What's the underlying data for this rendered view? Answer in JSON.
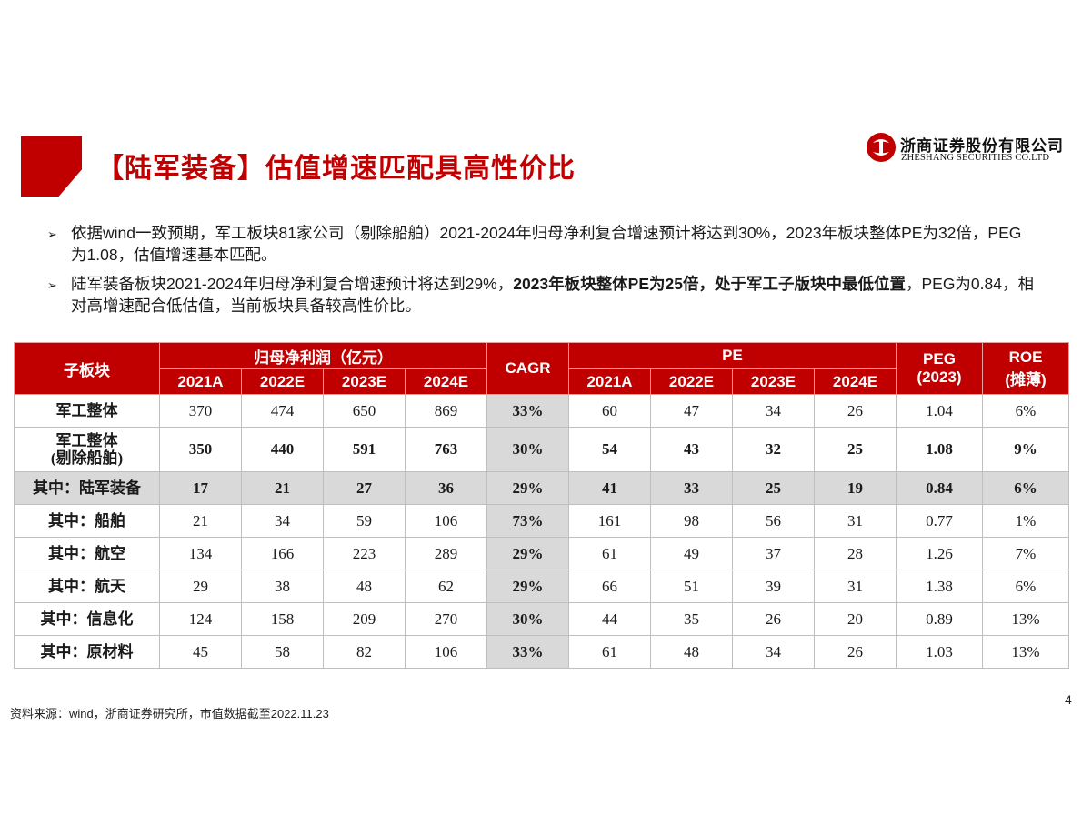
{
  "header": {
    "title": "【陆军装备】估值增速匹配具高性价比",
    "logo_cn": "浙商证券股份有限公司",
    "logo_en": "ZHESHANG SECURITIES CO.LTD",
    "accent": "#c00000"
  },
  "bullets": [
    {
      "icon": "bullet-arrow-icon",
      "segments": [
        {
          "text": "依据wind一致预期，军工板块81家公司（剔除船舶）2021-2024年归母净利复合增速预计将达到30%，2023年板块整体PE为32倍，PEG为1.08，估值增速基本匹配。",
          "bold": false
        }
      ]
    },
    {
      "icon": "bullet-arrow-icon",
      "segments": [
        {
          "text": "陆军装备板块2021-2024年归母净利复合增速预计将达到29%，",
          "bold": false
        },
        {
          "text": "2023年板块整体PE为25倍，处于军工子版块中最低位置",
          "bold": true
        },
        {
          "text": "，PEG为0.84，相对高增速配合低估值，当前板块具备较高性价比。",
          "bold": false
        }
      ]
    }
  ],
  "table": {
    "col_sub": "子板块",
    "col_profit": "归母净利润（亿元）",
    "col_cagr": "CAGR",
    "col_pe": "PE",
    "col_peg": "PEG",
    "col_peg_sub": "(2023)",
    "col_roe": "ROE",
    "col_roe_sub": "(摊薄)",
    "years": [
      "2021A",
      "2022E",
      "2023E",
      "2024E"
    ],
    "rows": [
      {
        "label": "军工整体",
        "label2": "",
        "profit": [
          "370",
          "474",
          "650",
          "869"
        ],
        "cagr": "33%",
        "pe": [
          "60",
          "47",
          "34",
          "26"
        ],
        "peg": "1.04",
        "roe": "6%",
        "bold": false,
        "shade": false
      },
      {
        "label": "军工整体",
        "label2": "(剔除船舶)",
        "profit": [
          "350",
          "440",
          "591",
          "763"
        ],
        "cagr": "30%",
        "pe": [
          "54",
          "43",
          "32",
          "25"
        ],
        "peg": "1.08",
        "roe": "9%",
        "bold": true,
        "shade": false
      },
      {
        "label": "其中：陆军装备",
        "label2": "",
        "profit": [
          "17",
          "21",
          "27",
          "36"
        ],
        "cagr": "29%",
        "pe": [
          "41",
          "33",
          "25",
          "19"
        ],
        "peg": "0.84",
        "roe": "6%",
        "bold": true,
        "shade": true
      },
      {
        "label": "其中：船舶",
        "label2": "",
        "profit": [
          "21",
          "34",
          "59",
          "106"
        ],
        "cagr": "73%",
        "pe": [
          "161",
          "98",
          "56",
          "31"
        ],
        "peg": "0.77",
        "roe": "1%",
        "bold": false,
        "shade": false
      },
      {
        "label": "其中：航空",
        "label2": "",
        "profit": [
          "134",
          "166",
          "223",
          "289"
        ],
        "cagr": "29%",
        "pe": [
          "61",
          "49",
          "37",
          "28"
        ],
        "peg": "1.26",
        "roe": "7%",
        "bold": false,
        "shade": false
      },
      {
        "label": "其中：航天",
        "label2": "",
        "profit": [
          "29",
          "38",
          "48",
          "62"
        ],
        "cagr": "29%",
        "pe": [
          "66",
          "51",
          "39",
          "31"
        ],
        "peg": "1.38",
        "roe": "6%",
        "bold": false,
        "shade": false
      },
      {
        "label": "其中：信息化",
        "label2": "",
        "profit": [
          "124",
          "158",
          "209",
          "270"
        ],
        "cagr": "30%",
        "pe": [
          "44",
          "35",
          "26",
          "20"
        ],
        "peg": "0.89",
        "roe": "13%",
        "bold": false,
        "shade": false
      },
      {
        "label": "其中：原材料",
        "label2": "",
        "profit": [
          "45",
          "58",
          "82",
          "106"
        ],
        "cagr": "33%",
        "pe": [
          "61",
          "48",
          "34",
          "26"
        ],
        "peg": "1.03",
        "roe": "13%",
        "bold": false,
        "shade": false
      }
    ]
  },
  "footer": {
    "source": "资料来源：wind，浙商证券研究所，市值数据截至2022.11.23",
    "page": "4"
  }
}
